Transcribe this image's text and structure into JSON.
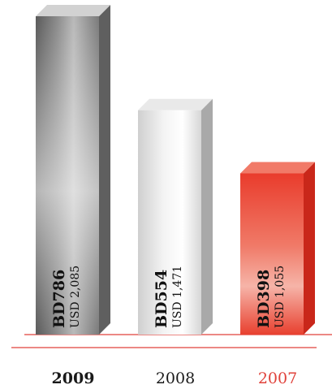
{
  "chart_data": {
    "type": "bar",
    "categories": [
      "2009",
      "2008",
      "2007"
    ],
    "values": [
      786,
      554,
      398
    ],
    "bar_labels": [
      {
        "primary": "BD786",
        "secondary": "USD 2,085"
      },
      {
        "primary": "BD554",
        "secondary": "USD 1,471"
      },
      {
        "primary": "BD398",
        "secondary": "USD 1,055"
      }
    ],
    "category_styles": [
      "bold",
      "normal",
      "red"
    ],
    "bar_themes": [
      "dark-gray",
      "light-gray",
      "red"
    ],
    "ylim": [
      0,
      786
    ],
    "grid": false,
    "title": "",
    "xlabel": "",
    "ylabel": ""
  },
  "colors": {
    "baseline": "#e0413a",
    "accent_red": "#e0413a",
    "text": "#1a1a1a"
  }
}
